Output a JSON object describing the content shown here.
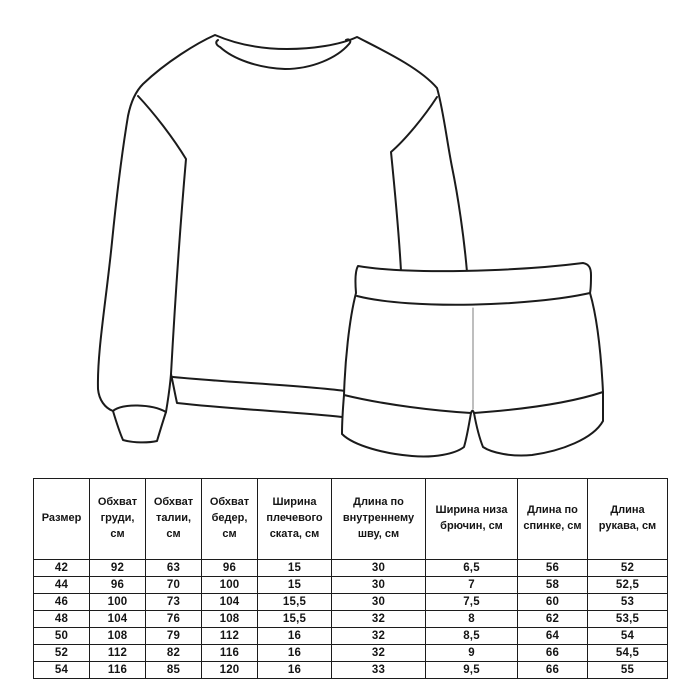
{
  "figure": {
    "items": [
      "sweatshirt-technical-sketch",
      "shorts-technical-sketch"
    ],
    "line_color": "#1b1b1b",
    "background_color": "#ffffff"
  },
  "table": {
    "columns": [
      "Размер",
      "Обхват груди, см",
      "Обхват талии, см",
      "Обхват бедер, см",
      "Ширина плечевого ската, см",
      "Длина по внутреннему шву, см",
      "Ширина низа брючин, см",
      "Длина по спинке, см",
      "Длина рукава, см"
    ],
    "rows": [
      [
        "42",
        "92",
        "63",
        "96",
        "15",
        "30",
        "6,5",
        "56",
        "52"
      ],
      [
        "44",
        "96",
        "70",
        "100",
        "15",
        "30",
        "7",
        "58",
        "52,5"
      ],
      [
        "46",
        "100",
        "73",
        "104",
        "15,5",
        "30",
        "7,5",
        "60",
        "53"
      ],
      [
        "48",
        "104",
        "76",
        "108",
        "15,5",
        "32",
        "8",
        "62",
        "53,5"
      ],
      [
        "50",
        "108",
        "79",
        "112",
        "16",
        "32",
        "8,5",
        "64",
        "54"
      ],
      [
        "52",
        "112",
        "82",
        "116",
        "16",
        "32",
        "9",
        "66",
        "54,5"
      ],
      [
        "54",
        "116",
        "85",
        "120",
        "16",
        "33",
        "9,5",
        "66",
        "55"
      ]
    ]
  }
}
